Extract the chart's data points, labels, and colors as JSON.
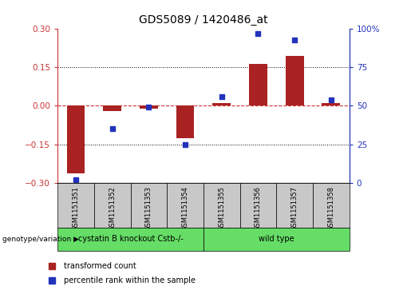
{
  "title": "GDS5089 / 1420486_at",
  "samples": [
    "GSM1151351",
    "GSM1151352",
    "GSM1151353",
    "GSM1151354",
    "GSM1151355",
    "GSM1151356",
    "GSM1151357",
    "GSM1151358"
  ],
  "bar_values": [
    -0.265,
    -0.02,
    -0.01,
    -0.125,
    0.01,
    0.165,
    0.195,
    0.01
  ],
  "dot_values": [
    2,
    35,
    49,
    25,
    56,
    97,
    93,
    54
  ],
  "ylim_left": [
    -0.3,
    0.3
  ],
  "ylim_right": [
    0,
    100
  ],
  "yticks_left": [
    -0.3,
    -0.15,
    0,
    0.15,
    0.3
  ],
  "yticks_right": [
    0,
    25,
    50,
    75,
    100
  ],
  "hlines": [
    0.15,
    -0.15
  ],
  "bar_color": "#AA2222",
  "dot_color": "#2233BB",
  "zero_line_color": "#CC3333",
  "hline_color": "#000000",
  "left_axis_color": "#CC3333",
  "right_axis_color": "#2233BB",
  "groups": [
    {
      "label": "cystatin B knockout Cstb-/-",
      "start": 0,
      "end": 4
    },
    {
      "label": "wild type",
      "start": 4,
      "end": 8
    }
  ],
  "group_color": "#66DD66",
  "sample_box_color": "#C8C8C8",
  "genotype_label": "genotype/variation",
  "legend_bar_label": "transformed count",
  "legend_dot_label": "percentile rank within the sample",
  "title_fontsize": 10
}
